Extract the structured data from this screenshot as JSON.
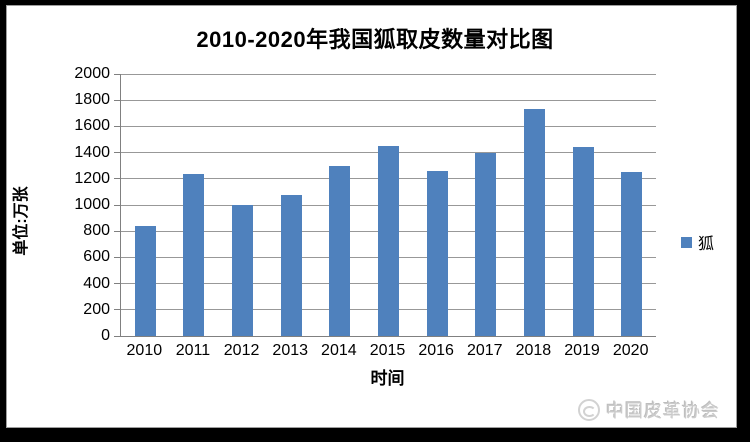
{
  "chart_data": {
    "type": "bar",
    "title": "2010-2020年我国狐取皮数量对比图",
    "categories": [
      "2010",
      "2011",
      "2012",
      "2013",
      "2014",
      "2015",
      "2016",
      "2017",
      "2018",
      "2019",
      "2020"
    ],
    "series": [
      {
        "name": "狐",
        "values": [
          840,
          1240,
          1000,
          1080,
          1300,
          1450,
          1260,
          1400,
          1730,
          1440,
          1250
        ]
      }
    ],
    "xlabel": "时间",
    "ylabel": "单位:万张",
    "ylim": [
      0,
      2000
    ],
    "ytick_step": 200,
    "grid": true,
    "legend_position": "right",
    "colors": {
      "bar": "#4F81BD",
      "gridline": "#989898",
      "axis": "#808080",
      "watermark_text": "#cbcbcb"
    }
  },
  "legend": {
    "items": [
      {
        "label": "狐",
        "color": "#4F81BD"
      }
    ]
  },
  "footer": {
    "watermark_text": "中国皮革协会"
  }
}
